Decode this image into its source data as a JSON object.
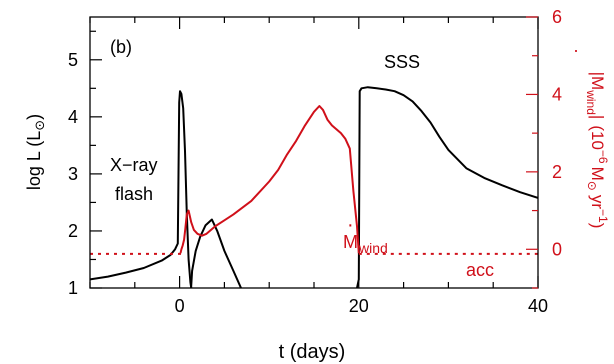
{
  "chart_data": {
    "type": "line",
    "panel_label": "(b)",
    "x_axis": {
      "label": "t (days)",
      "range": [
        -10,
        40
      ],
      "ticks": [
        0,
        20,
        40
      ]
    },
    "y_left": {
      "label_main": "log L (L",
      "label_sun": "⊙",
      "label_close": ")",
      "range": [
        1,
        5.75
      ],
      "ticks": [
        1,
        2,
        3,
        4,
        5
      ]
    },
    "y_right": {
      "color": "#d0101a",
      "label_abs_open": "|M",
      "label_dot": "·",
      "label_sub": "wind",
      "label_abs_close": "|",
      "label_units_open": "(10",
      "label_exp1": "−6",
      "label_units_mid": "M",
      "label_sun": "⊙",
      "label_units_yr": "yr",
      "label_exp2": "−1",
      "label_units_close": ")",
      "range": [
        -1,
        6
      ],
      "ticks": [
        0,
        2,
        4,
        6
      ]
    },
    "annotations": {
      "xray_line1": "X−ray",
      "xray_line2": "flash",
      "sss": "SSS",
      "mdot_main": "M",
      "mdot_dot": "·",
      "mdot_sub": "wind",
      "acc": "acc"
    },
    "colors": {
      "luminosity": "#000000",
      "mdot": "#d0101a",
      "accretion": "#d0101a"
    },
    "series": [
      {
        "axis": "left",
        "style": "solid",
        "x": [
          -10,
          -8,
          -6,
          -4,
          -2,
          -1,
          -0.5,
          -0.2,
          -0.05,
          0.05,
          0.2,
          0.4,
          0.6,
          0.8,
          1.0,
          1.2,
          1.4,
          1.6
        ],
        "y": [
          1.15,
          1.2,
          1.27,
          1.35,
          1.48,
          1.58,
          1.68,
          1.78,
          4.25,
          4.45,
          4.4,
          4.15,
          3.4,
          2.3,
          1.5,
          1.1,
          0.9,
          0.7
        ]
      },
      {
        "axis": "left",
        "style": "solid",
        "x": [
          1.2,
          1.4,
          1.8,
          2.3,
          2.9,
          3.6,
          4.2,
          5.0,
          6.0,
          7.0
        ],
        "y": [
          0.8,
          1.3,
          1.65,
          1.9,
          2.1,
          2.2,
          2.0,
          1.65,
          1.3,
          0.95
        ]
      },
      {
        "axis": "left",
        "style": "solid",
        "x": [
          19.6,
          19.8,
          20.0,
          20.1,
          20.3,
          21,
          22,
          23,
          24,
          25,
          26,
          27,
          28,
          29,
          30,
          32,
          34,
          36,
          38,
          40
        ],
        "y": [
          0.8,
          1.0,
          1.15,
          4.45,
          4.5,
          4.52,
          4.5,
          4.48,
          4.45,
          4.38,
          4.27,
          4.1,
          3.9,
          3.65,
          3.42,
          3.1,
          2.93,
          2.8,
          2.68,
          2.58
        ]
      },
      {
        "axis": "right",
        "style": "solid",
        "name": "M wind",
        "x": [
          0.1,
          0.2,
          0.35,
          0.5,
          0.65,
          0.8,
          1.0,
          1.3,
          1.6,
          2.0,
          2.5,
          3.0,
          4.0,
          5.0,
          6,
          8,
          10,
          11,
          12,
          13,
          14,
          15,
          15.6,
          16,
          16.5,
          17,
          18,
          18.5,
          19,
          19.4,
          19.8,
          20.0
        ],
        "y": [
          -0.1,
          0.0,
          0.1,
          0.25,
          0.55,
          0.9,
          1.0,
          0.7,
          0.5,
          0.4,
          0.35,
          0.4,
          0.6,
          0.75,
          0.9,
          1.25,
          1.75,
          2.05,
          2.45,
          2.8,
          3.2,
          3.55,
          3.7,
          3.6,
          3.35,
          3.2,
          3.0,
          2.85,
          2.6,
          1.5,
          0.6,
          -0.1
        ]
      },
      {
        "axis": "right",
        "style": "dotted",
        "name": "acc",
        "x": [
          -10,
          0.2
        ],
        "y": [
          -0.12,
          -0.12
        ]
      },
      {
        "axis": "right",
        "style": "dotted",
        "name": "acc",
        "x": [
          20.0,
          40
        ],
        "y": [
          -0.12,
          -0.12
        ]
      }
    ]
  }
}
